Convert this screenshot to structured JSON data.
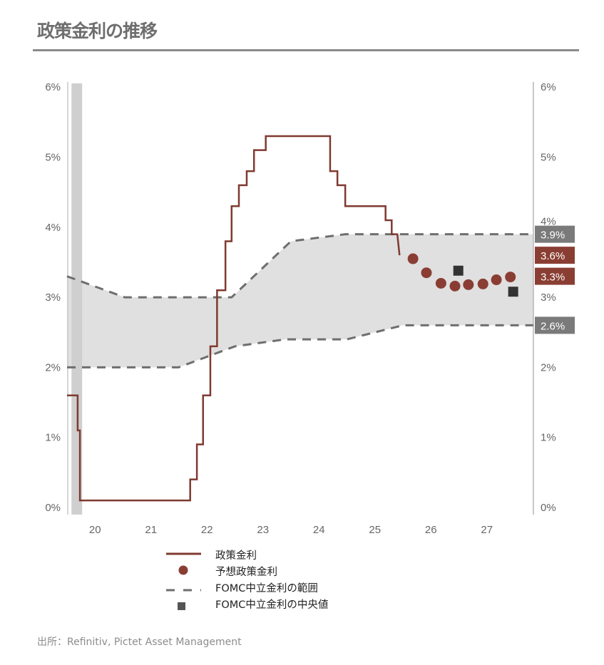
{
  "title": "政策金利の推移",
  "source": "出所：Refinitiv, Pictet Asset Management",
  "colors": {
    "policy": "#7f3a30",
    "forecast": "#8a3e33",
    "range": "#6e6e6e",
    "range_fill": "#e0e0e0",
    "median": "#333333",
    "shade": "#cfcfcf"
  },
  "chart_data": {
    "type": "line",
    "title": "政策金利の推移",
    "xlim": [
      2020.0,
      2028.33
    ],
    "ylim": [
      0,
      6
    ],
    "x_ticks": [
      {
        "value": 2020.5,
        "label": "20"
      },
      {
        "value": 2021.5,
        "label": "21"
      },
      {
        "value": 2022.5,
        "label": "22"
      },
      {
        "value": 2023.5,
        "label": "23"
      },
      {
        "value": 2024.5,
        "label": "24"
      },
      {
        "value": 2025.5,
        "label": "25"
      },
      {
        "value": 2026.5,
        "label": "26"
      },
      {
        "value": 2027.5,
        "label": "27"
      }
    ],
    "y_ticks": [
      {
        "value": 0,
        "label": "0%"
      },
      {
        "value": 1,
        "label": "1%"
      },
      {
        "value": 2,
        "label": "2%"
      },
      {
        "value": 3,
        "label": "3%"
      },
      {
        "value": 4,
        "label": "4%"
      },
      {
        "value": 5,
        "label": "5%"
      },
      {
        "value": 6,
        "label": "6%"
      }
    ],
    "shaded_period": [
      2020.08,
      2020.27
    ],
    "series": [
      {
        "name": "政策金利",
        "style": "step",
        "points": [
          [
            2020.0,
            1.6
          ],
          [
            2020.19,
            1.1
          ],
          [
            2020.23,
            0.1
          ],
          [
            2022.2,
            0.4
          ],
          [
            2022.32,
            0.9
          ],
          [
            2022.43,
            1.6
          ],
          [
            2022.56,
            2.3
          ],
          [
            2022.68,
            3.1
          ],
          [
            2022.83,
            3.8
          ],
          [
            2022.94,
            4.3
          ],
          [
            2023.07,
            4.6
          ],
          [
            2023.21,
            4.8
          ],
          [
            2023.34,
            5.1
          ],
          [
            2023.55,
            5.3
          ],
          [
            2024.7,
            4.8
          ],
          [
            2024.83,
            4.6
          ],
          [
            2024.97,
            4.3
          ],
          [
            2025.69,
            4.1
          ],
          [
            2025.8,
            3.9
          ],
          [
            2025.9,
            3.9
          ]
        ],
        "end": [
          2025.94,
          3.6
        ]
      },
      {
        "name": "予想政策金利",
        "style": "dots",
        "points": [
          [
            2026.18,
            3.55
          ],
          [
            2026.42,
            3.35
          ],
          [
            2026.68,
            3.2
          ],
          [
            2026.93,
            3.16
          ],
          [
            2027.17,
            3.18
          ],
          [
            2027.43,
            3.19
          ],
          [
            2027.67,
            3.25
          ],
          [
            2027.92,
            3.29
          ]
        ]
      },
      {
        "name": "FOMC中立金利の範囲",
        "style": "dashed-band",
        "upper": [
          [
            2020.0,
            3.3
          ],
          [
            2021.03,
            3.0
          ],
          [
            2022.94,
            3.0
          ],
          [
            2024.0,
            3.8
          ],
          [
            2024.97,
            3.9
          ],
          [
            2028.33,
            3.9
          ]
        ],
        "lower": [
          [
            2020.0,
            2.0
          ],
          [
            2021.99,
            2.0
          ],
          [
            2023.0,
            2.3
          ],
          [
            2023.9,
            2.4
          ],
          [
            2025.0,
            2.4
          ],
          [
            2026.0,
            2.6
          ],
          [
            2028.33,
            2.6
          ]
        ]
      },
      {
        "name": "FOMC中立金利の中央値",
        "style": "squares",
        "points": [
          [
            2026.99,
            3.38
          ],
          [
            2027.97,
            3.08
          ]
        ]
      }
    ],
    "end_labels": [
      {
        "value": 3.9,
        "label": "3.9%",
        "kind": "range"
      },
      {
        "value": 3.6,
        "label": "3.6%",
        "kind": "forecast"
      },
      {
        "value": 3.3,
        "label": "3.3%",
        "kind": "forecast"
      },
      {
        "value": 2.6,
        "label": "2.6%",
        "kind": "range"
      }
    ],
    "legend": [
      "政策金利",
      "予想政策金利",
      "FOMC中立金利の範囲",
      "FOMC中立金利の中央値"
    ],
    "legend_position": "bottom"
  }
}
